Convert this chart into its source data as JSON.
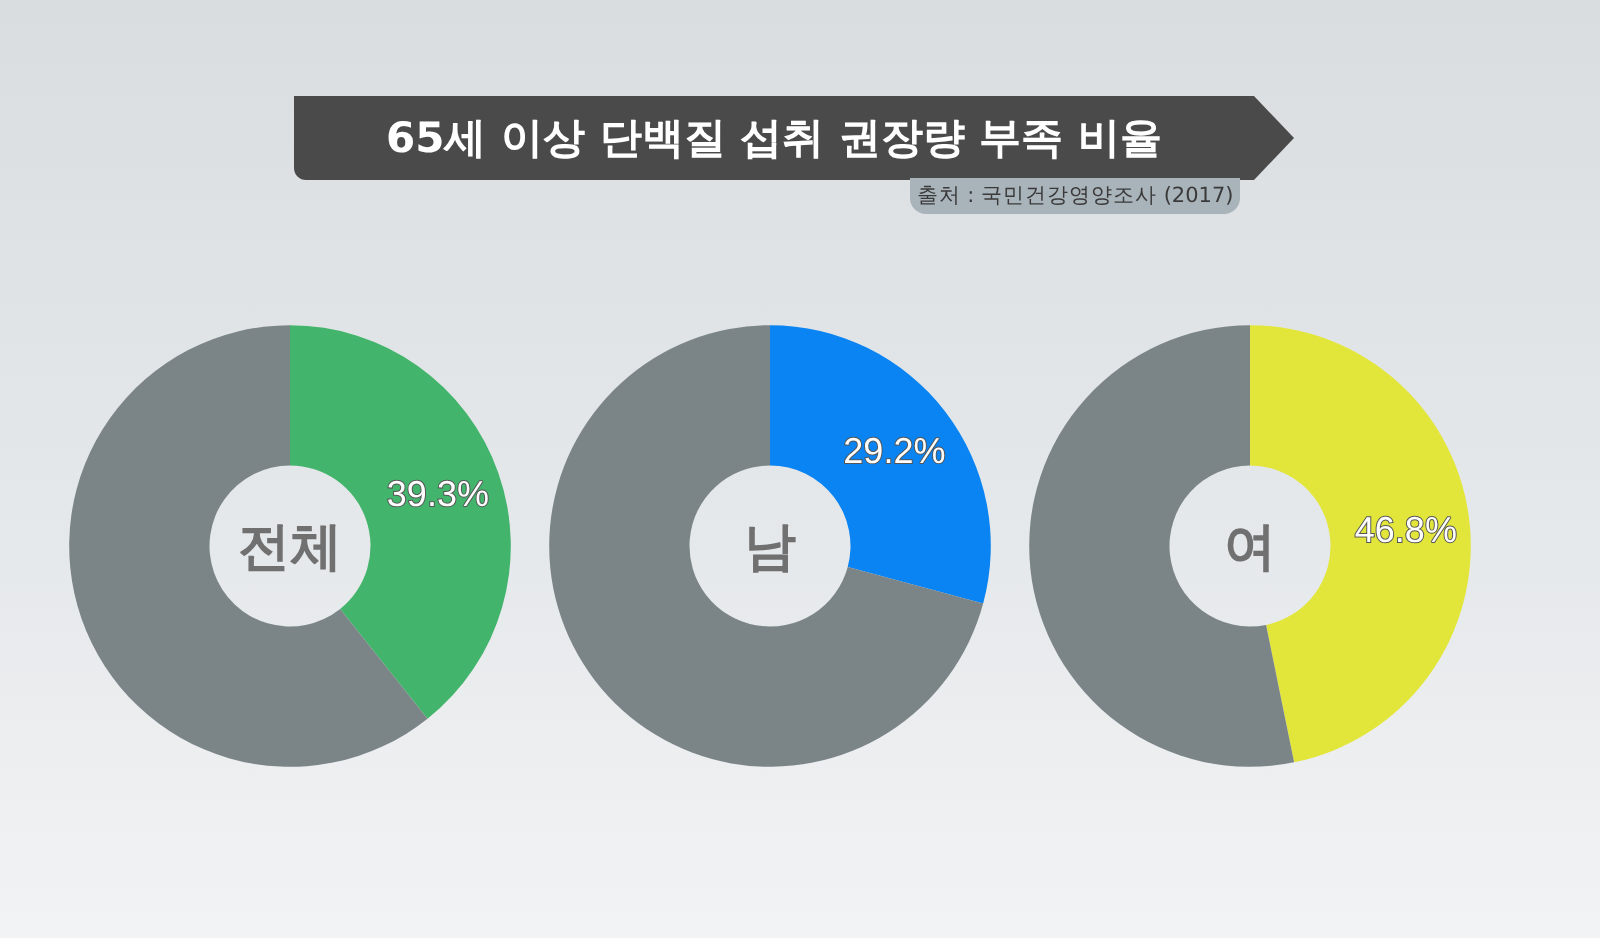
{
  "chart_data": [
    {
      "type": "other",
      "title": "65세 이상 단백질 섭취 권장량 부족 비율",
      "annotations": [
        "출처 : 국민건강영양조사 (2017)"
      ]
    },
    {
      "type": "donut",
      "title": "전체",
      "categories": [
        null,
        null
      ],
      "values": [
        39.3,
        60.7
      ],
      "colors": [
        "#43b46b",
        "#7b8588"
      ],
      "value_labels": [
        "39.3%",
        null
      ]
    },
    {
      "type": "donut",
      "title": "남",
      "categories": [
        null,
        null
      ],
      "values": [
        29.2,
        70.8
      ],
      "colors": [
        "#0a84f2",
        "#7b8588"
      ],
      "value_labels": [
        "29.2%",
        null
      ]
    },
    {
      "type": "donut",
      "title": "여",
      "categories": [
        null,
        null
      ],
      "values": [
        46.8,
        53.2
      ],
      "colors": [
        "#e2e63a",
        "#7b8588"
      ],
      "value_labels": [
        "46.8%",
        null
      ]
    }
  ]
}
